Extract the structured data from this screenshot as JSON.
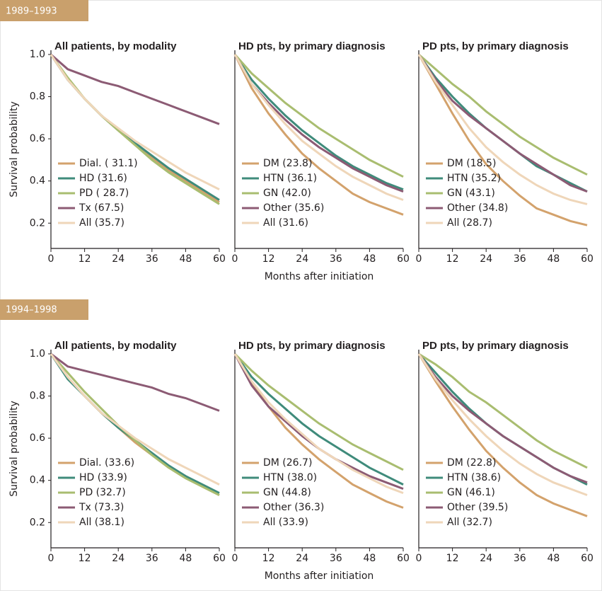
{
  "sections": [
    "1989–1993",
    "1994–1998"
  ],
  "chart_data": [
    {
      "type": "line",
      "title": "All patients, by modality",
      "ylabel": "Survival probability",
      "legend": "lower left",
      "x": [
        0,
        6,
        12,
        18,
        24,
        30,
        36,
        42,
        48,
        54,
        60
      ],
      "xlim": [
        0,
        60
      ],
      "xticks": [
        0,
        12,
        24,
        36,
        48,
        60
      ],
      "ylim": [
        0.08,
        1.02
      ],
      "yticks": [
        0.2,
        0.4,
        0.6,
        0.8,
        {
          "value": 1,
          "label": "1.0"
        }
      ],
      "series": [
        {
          "name": "Dial. ( 31.1)",
          "color": "#d3a26c",
          "values": [
            1,
            0.88,
            0.79,
            0.71,
            0.64,
            0.57,
            0.51,
            0.45,
            0.4,
            0.35,
            0.3
          ]
        },
        {
          "name": "HD (31.6)",
          "color": "#3f8b7b",
          "values": [
            1,
            0.88,
            0.79,
            0.71,
            0.64,
            0.58,
            0.52,
            0.46,
            0.41,
            0.36,
            0.31
          ]
        },
        {
          "name": "PD ( 28.7)",
          "color": "#a9bd70",
          "values": [
            1,
            0.89,
            0.79,
            0.71,
            0.64,
            0.57,
            0.5,
            0.44,
            0.39,
            0.34,
            0.29
          ]
        },
        {
          "name": "Tx (67.5)",
          "color": "#8c5b74",
          "values": [
            1,
            0.93,
            0.9,
            0.87,
            0.85,
            0.82,
            0.79,
            0.76,
            0.73,
            0.7,
            0.67
          ]
        },
        {
          "name": "All (35.7)",
          "color": "#efd6b9",
          "values": [
            1,
            0.88,
            0.79,
            0.71,
            0.65,
            0.59,
            0.54,
            0.49,
            0.44,
            0.4,
            0.36
          ]
        }
      ]
    },
    {
      "type": "line",
      "title": "HD pts, by primary diagnosis",
      "xlabel": "Months after initiation",
      "legend": "lower left",
      "x": [
        0,
        6,
        12,
        18,
        24,
        30,
        36,
        42,
        48,
        54,
        60
      ],
      "xlim": [
        0,
        60
      ],
      "xticks": [
        0,
        12,
        24,
        36,
        48,
        60
      ],
      "ylim": [
        0.08,
        1.02
      ],
      "series": [
        {
          "name": "DM (23.8)",
          "color": "#d3a26c",
          "values": [
            1,
            0.84,
            0.72,
            0.62,
            0.53,
            0.46,
            0.4,
            0.34,
            0.3,
            0.27,
            0.24
          ]
        },
        {
          "name": "HTN (36.1)",
          "color": "#3f8b7b",
          "values": [
            1,
            0.88,
            0.79,
            0.71,
            0.64,
            0.58,
            0.52,
            0.47,
            0.43,
            0.39,
            0.36
          ]
        },
        {
          "name": "GN (42.0)",
          "color": "#a9bd70",
          "values": [
            1,
            0.91,
            0.84,
            0.77,
            0.71,
            0.65,
            0.6,
            0.55,
            0.5,
            0.46,
            0.42
          ]
        },
        {
          "name": "Other (35.6)",
          "color": "#8c5b74",
          "values": [
            1,
            0.86,
            0.77,
            0.69,
            0.62,
            0.56,
            0.51,
            0.46,
            0.42,
            0.38,
            0.35
          ]
        },
        {
          "name": "All (31.6)",
          "color": "#efd6b9",
          "values": [
            1,
            0.86,
            0.76,
            0.67,
            0.59,
            0.53,
            0.47,
            0.42,
            0.38,
            0.34,
            0.31
          ]
        }
      ]
    },
    {
      "type": "line",
      "title": "PD pts, by primary diagnosis",
      "legend": "lower left",
      "x": [
        0,
        6,
        12,
        18,
        24,
        30,
        36,
        42,
        48,
        54,
        60
      ],
      "xlim": [
        0,
        60
      ],
      "xticks": [
        0,
        12,
        24,
        36,
        48,
        60
      ],
      "ylim": [
        0.08,
        1.02
      ],
      "series": [
        {
          "name": "DM (18.5)",
          "color": "#d3a26c",
          "values": [
            1,
            0.86,
            0.72,
            0.59,
            0.48,
            0.4,
            0.33,
            0.27,
            0.24,
            0.21,
            0.19
          ]
        },
        {
          "name": "HTN (35.2)",
          "color": "#3f8b7b",
          "values": [
            1,
            0.89,
            0.8,
            0.72,
            0.65,
            0.59,
            0.53,
            0.47,
            0.43,
            0.39,
            0.35
          ]
        },
        {
          "name": "GN (43.1)",
          "color": "#a9bd70",
          "values": [
            1,
            0.93,
            0.86,
            0.8,
            0.73,
            0.67,
            0.61,
            0.56,
            0.51,
            0.47,
            0.43
          ]
        },
        {
          "name": "Other (34.8)",
          "color": "#8c5b74",
          "values": [
            1,
            0.88,
            0.78,
            0.71,
            0.65,
            0.59,
            0.53,
            0.48,
            0.43,
            0.38,
            0.35
          ]
        },
        {
          "name": "All (28.7)",
          "color": "#efd6b9",
          "values": [
            1,
            0.87,
            0.76,
            0.65,
            0.56,
            0.49,
            0.43,
            0.38,
            0.34,
            0.31,
            0.29
          ]
        }
      ]
    },
    {
      "type": "line",
      "title": "All patients, by modality",
      "ylabel": "Survival probability",
      "legend": "lower left",
      "x": [
        0,
        6,
        12,
        18,
        24,
        30,
        36,
        42,
        48,
        54,
        60
      ],
      "xlim": [
        0,
        60
      ],
      "xticks": [
        0,
        12,
        24,
        36,
        48,
        60
      ],
      "ylim": [
        0.08,
        1.02
      ],
      "yticks": [
        0.2,
        0.4,
        0.6,
        0.8,
        {
          "value": 1,
          "label": "1.0"
        }
      ],
      "series": [
        {
          "name": "Dial. (33.6)",
          "color": "#d3a26c",
          "values": [
            1,
            0.89,
            0.8,
            0.72,
            0.65,
            0.58,
            0.52,
            0.46,
            0.42,
            0.37,
            0.33
          ]
        },
        {
          "name": "HD (33.9)",
          "color": "#3f8b7b",
          "values": [
            1,
            0.88,
            0.8,
            0.72,
            0.65,
            0.59,
            0.53,
            0.47,
            0.42,
            0.38,
            0.34
          ]
        },
        {
          "name": "PD (32.7)",
          "color": "#a9bd70",
          "values": [
            1,
            0.91,
            0.82,
            0.74,
            0.66,
            0.59,
            0.52,
            0.46,
            0.41,
            0.37,
            0.33
          ]
        },
        {
          "name": "Tx (73.3)",
          "color": "#8c5b74",
          "values": [
            1,
            0.94,
            0.92,
            0.9,
            0.88,
            0.86,
            0.84,
            0.81,
            0.79,
            0.76,
            0.73
          ]
        },
        {
          "name": "All (38.1)",
          "color": "#efd6b9",
          "values": [
            1,
            0.89,
            0.8,
            0.72,
            0.66,
            0.6,
            0.55,
            0.5,
            0.46,
            0.42,
            0.38
          ]
        }
      ]
    },
    {
      "type": "line",
      "title": "HD pts, by primary diagnosis",
      "xlabel": "Months after initiation",
      "legend": "lower left",
      "x": [
        0,
        6,
        12,
        18,
        24,
        30,
        36,
        42,
        48,
        54,
        60
      ],
      "xlim": [
        0,
        60
      ],
      "xticks": [
        0,
        12,
        24,
        36,
        48,
        60
      ],
      "ylim": [
        0.08,
        1.02
      ],
      "series": [
        {
          "name": "DM (26.7)",
          "color": "#d3a26c",
          "values": [
            1,
            0.86,
            0.75,
            0.65,
            0.57,
            0.5,
            0.44,
            0.38,
            0.34,
            0.3,
            0.27
          ]
        },
        {
          "name": "HTN (38.0)",
          "color": "#3f8b7b",
          "values": [
            1,
            0.89,
            0.81,
            0.74,
            0.67,
            0.61,
            0.56,
            0.51,
            0.46,
            0.42,
            0.38
          ]
        },
        {
          "name": "GN (44.8)",
          "color": "#a9bd70",
          "values": [
            1,
            0.92,
            0.85,
            0.79,
            0.73,
            0.67,
            0.62,
            0.57,
            0.53,
            0.49,
            0.45
          ]
        },
        {
          "name": "Other (36.3)",
          "color": "#8c5b74",
          "values": [
            1,
            0.85,
            0.75,
            0.68,
            0.61,
            0.55,
            0.5,
            0.46,
            0.42,
            0.39,
            0.36
          ]
        },
        {
          "name": "All (33.9)",
          "color": "#efd6b9",
          "values": [
            1,
            0.87,
            0.77,
            0.69,
            0.62,
            0.55,
            0.5,
            0.45,
            0.41,
            0.37,
            0.34
          ]
        }
      ]
    },
    {
      "type": "line",
      "title": "PD pts, by primary diagnosis",
      "legend": "lower left",
      "x": [
        0,
        6,
        12,
        18,
        24,
        30,
        36,
        42,
        48,
        54,
        60
      ],
      "xlim": [
        0,
        60
      ],
      "xticks": [
        0,
        12,
        24,
        36,
        48,
        60
      ],
      "ylim": [
        0.08,
        1.02
      ],
      "series": [
        {
          "name": "DM (22.8)",
          "color": "#d3a26c",
          "values": [
            1,
            0.87,
            0.75,
            0.64,
            0.54,
            0.46,
            0.39,
            0.33,
            0.29,
            0.26,
            0.23
          ]
        },
        {
          "name": "HTN (38.6)",
          "color": "#3f8b7b",
          "values": [
            1,
            0.91,
            0.82,
            0.74,
            0.67,
            0.61,
            0.56,
            0.51,
            0.46,
            0.42,
            0.38
          ]
        },
        {
          "name": "GN (46.1)",
          "color": "#a9bd70",
          "values": [
            1,
            0.95,
            0.89,
            0.82,
            0.77,
            0.71,
            0.65,
            0.59,
            0.54,
            0.5,
            0.46
          ]
        },
        {
          "name": "Other (39.5)",
          "color": "#8c5b74",
          "values": [
            1,
            0.89,
            0.8,
            0.73,
            0.67,
            0.61,
            0.56,
            0.51,
            0.46,
            0.42,
            0.39
          ]
        },
        {
          "name": "All  (32.7)",
          "color": "#efd6b9",
          "values": [
            1,
            0.88,
            0.78,
            0.69,
            0.61,
            0.54,
            0.48,
            0.43,
            0.39,
            0.36,
            0.33
          ]
        }
      ]
    }
  ]
}
